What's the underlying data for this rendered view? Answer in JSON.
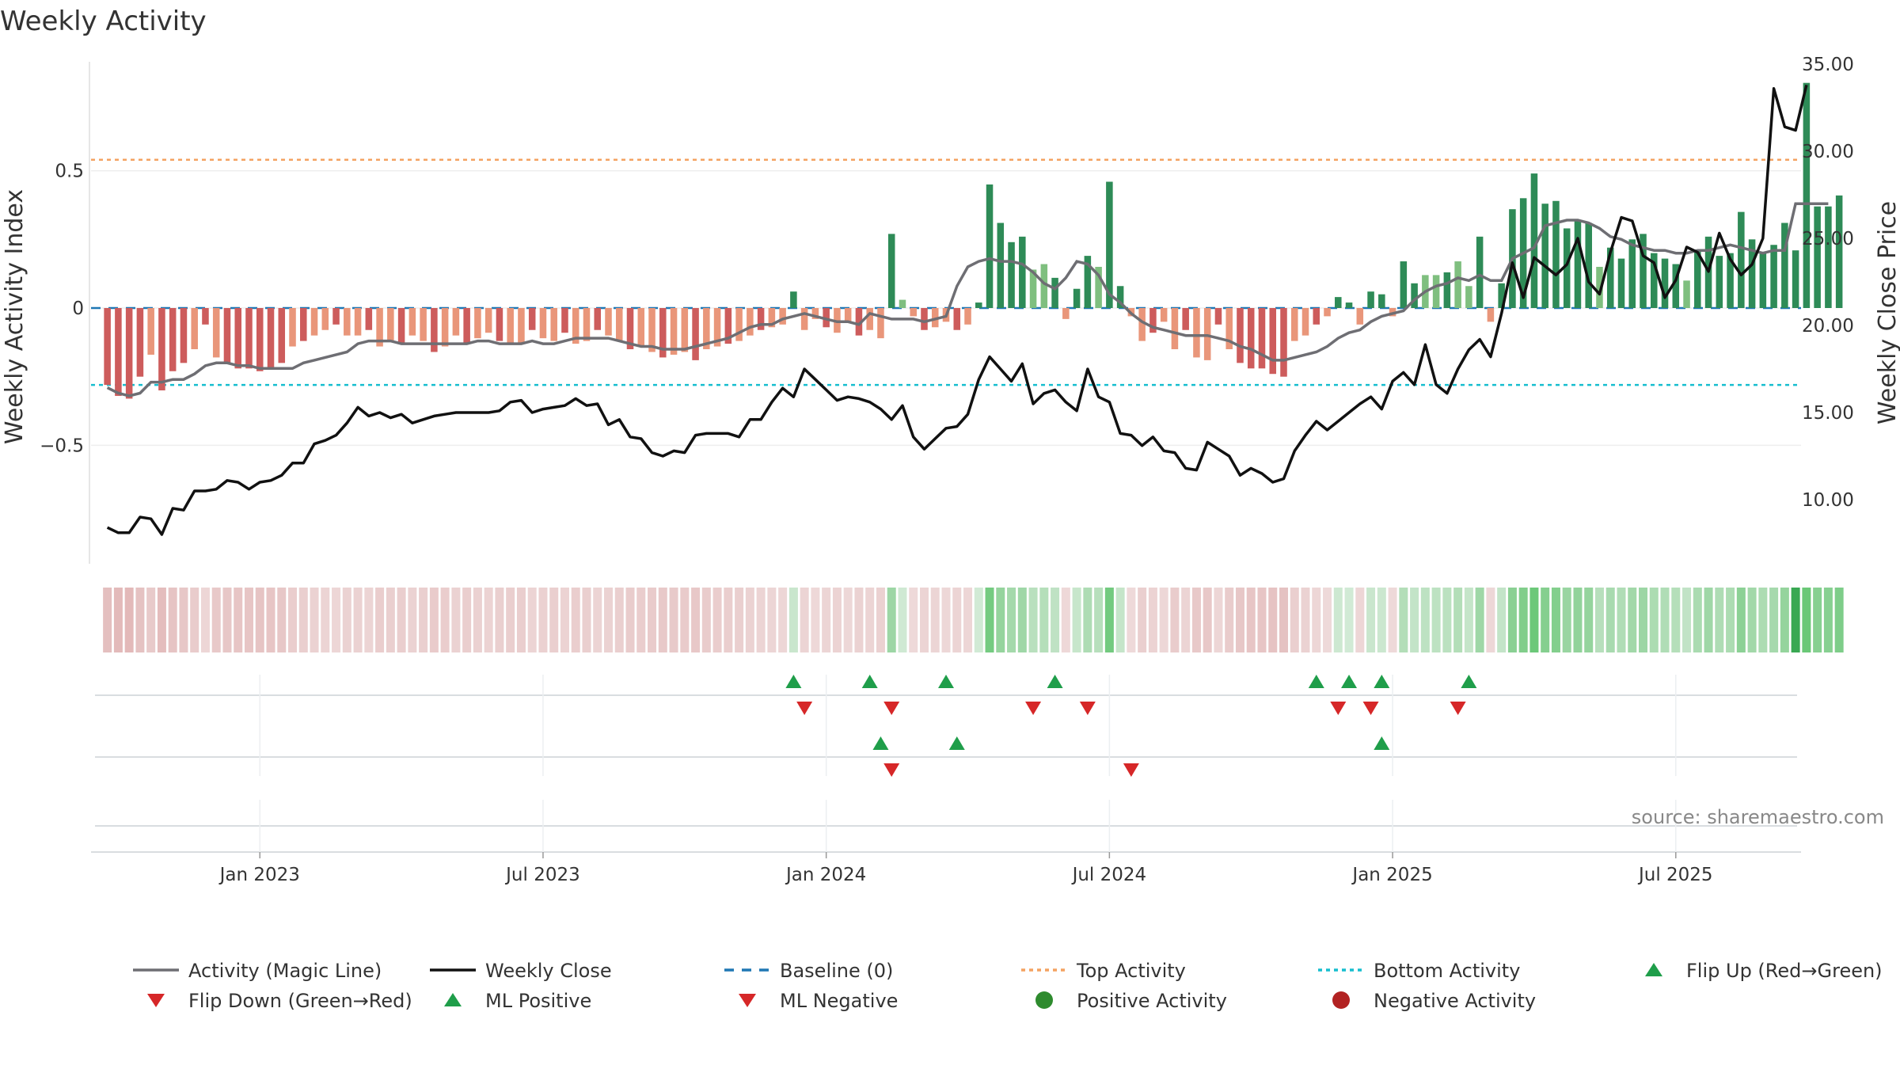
{
  "chart_data": {
    "type": "bar",
    "title": "Weekly Activity",
    "ylabel": "Weekly Activity Index",
    "ylabel_right": "Weekly Close Price",
    "ylim": [
      -0.92,
      0.92
    ],
    "ylim_right": [
      6.5,
      35.5
    ],
    "yticks": [
      {
        "v": 0.5,
        "label": "0.5"
      },
      {
        "v": 0,
        "label": "0"
      },
      {
        "v": -0.5,
        "label": "−0.5"
      }
    ],
    "yticks_right": [
      "35.00",
      "30.00",
      "25.00",
      "20.00",
      "15.00",
      "10.00"
    ],
    "x_ticks": [
      {
        "week": 14,
        "label": "Jan 2023"
      },
      {
        "week": 40,
        "label": "Jul 2023"
      },
      {
        "week": 66,
        "label": "Jan 2024"
      },
      {
        "week": 92,
        "label": "Jul 2024"
      },
      {
        "week": 118,
        "label": "Jan 2025"
      },
      {
        "week": 144,
        "label": "Jul 2025"
      }
    ],
    "x_range": [
      -1.5,
      155.5
    ],
    "top_activity": 0.54,
    "bottom_activity": -0.28,
    "activity": [
      -0.28,
      -0.32,
      -0.33,
      -0.25,
      -0.17,
      -0.3,
      -0.23,
      -0.2,
      -0.15,
      -0.06,
      -0.18,
      -0.2,
      -0.22,
      -0.22,
      -0.23,
      -0.22,
      -0.2,
      -0.14,
      -0.12,
      -0.1,
      -0.08,
      -0.06,
      -0.1,
      -0.1,
      -0.08,
      -0.14,
      -0.12,
      -0.13,
      -0.1,
      -0.12,
      -0.16,
      -0.14,
      -0.1,
      -0.13,
      -0.11,
      -0.09,
      -0.12,
      -0.13,
      -0.13,
      -0.08,
      -0.11,
      -0.12,
      -0.09,
      -0.13,
      -0.12,
      -0.08,
      -0.1,
      -0.12,
      -0.15,
      -0.14,
      -0.16,
      -0.18,
      -0.17,
      -0.16,
      -0.19,
      -0.15,
      -0.14,
      -0.13,
      -0.12,
      -0.1,
      -0.08,
      -0.07,
      -0.06,
      0.06,
      -0.08,
      -0.04,
      -0.07,
      -0.09,
      -0.05,
      -0.1,
      -0.08,
      -0.11,
      0.27,
      0.03,
      -0.03,
      -0.08,
      -0.07,
      -0.05,
      -0.08,
      -0.06,
      0.02,
      0.45,
      0.31,
      0.24,
      0.26,
      0.14,
      0.16,
      0.11,
      -0.04,
      0.07,
      0.19,
      0.15,
      0.46,
      0.08,
      -0.03,
      -0.12,
      -0.09,
      -0.05,
      -0.15,
      -0.08,
      -0.18,
      -0.19,
      -0.06,
      -0.15,
      -0.2,
      -0.22,
      -0.22,
      -0.24,
      -0.25,
      -0.12,
      -0.1,
      -0.06,
      -0.03,
      0.04,
      0.02,
      -0.06,
      0.06,
      0.05,
      -0.03,
      0.17,
      0.09,
      0.12,
      0.12,
      0.13,
      0.17,
      0.08,
      0.26,
      -0.05,
      0.09,
      0.36,
      0.4,
      0.49,
      0.38,
      0.39,
      0.29,
      0.32,
      0.31,
      0.15,
      0.22,
      0.18,
      0.25,
      0.27,
      0.2,
      0.18,
      0.16,
      0.1,
      0.21,
      0.26,
      0.19,
      0.2,
      0.35,
      0.25,
      0.2,
      0.23,
      0.31,
      0.21,
      0.82,
      0.37,
      0.37,
      0.41
    ],
    "magic_line": [
      -0.29,
      -0.31,
      -0.32,
      -0.31,
      -0.27,
      -0.27,
      -0.26,
      -0.26,
      -0.24,
      -0.21,
      -0.2,
      -0.2,
      -0.21,
      -0.21,
      -0.22,
      -0.22,
      -0.22,
      -0.22,
      -0.2,
      -0.19,
      -0.18,
      -0.17,
      -0.16,
      -0.13,
      -0.12,
      -0.12,
      -0.12,
      -0.13,
      -0.13,
      -0.13,
      -0.13,
      -0.13,
      -0.13,
      -0.13,
      -0.12,
      -0.12,
      -0.13,
      -0.13,
      -0.13,
      -0.12,
      -0.13,
      -0.13,
      -0.12,
      -0.11,
      -0.11,
      -0.11,
      -0.11,
      -0.12,
      -0.13,
      -0.14,
      -0.14,
      -0.15,
      -0.15,
      -0.15,
      -0.14,
      -0.13,
      -0.12,
      -0.11,
      -0.09,
      -0.07,
      -0.06,
      -0.06,
      -0.04,
      -0.03,
      -0.02,
      -0.03,
      -0.04,
      -0.05,
      -0.05,
      -0.06,
      -0.02,
      -0.03,
      -0.04,
      -0.04,
      -0.04,
      -0.05,
      -0.04,
      -0.03,
      0.08,
      0.15,
      0.17,
      0.18,
      0.17,
      0.17,
      0.16,
      0.13,
      0.09,
      0.07,
      0.11,
      0.17,
      0.16,
      0.12,
      0.05,
      0.02,
      -0.02,
      -0.05,
      -0.07,
      -0.08,
      -0.09,
      -0.1,
      -0.1,
      -0.1,
      -0.11,
      -0.12,
      -0.14,
      -0.15,
      -0.17,
      -0.19,
      -0.19,
      -0.18,
      -0.17,
      -0.16,
      -0.14,
      -0.11,
      -0.09,
      -0.08,
      -0.05,
      -0.03,
      -0.02,
      -0.01,
      0.03,
      0.06,
      0.08,
      0.09,
      0.11,
      0.1,
      0.12,
      0.1,
      0.1,
      0.18,
      0.2,
      0.22,
      0.3,
      0.31,
      0.32,
      0.32,
      0.31,
      0.29,
      0.26,
      0.25,
      0.23,
      0.22,
      0.21,
      0.21,
      0.2,
      0.2,
      0.21,
      0.21,
      0.22,
      0.23,
      0.22,
      0.21,
      0.2,
      0.21,
      0.21,
      0.38,
      0.38,
      0.38,
      0.38
    ],
    "weekly_close": [
      8.4,
      8.1,
      8.1,
      9.0,
      8.9,
      8.0,
      9.5,
      9.4,
      10.5,
      10.5,
      10.6,
      11.1,
      11.0,
      10.6,
      11.0,
      11.1,
      11.4,
      12.1,
      12.1,
      13.2,
      13.4,
      13.7,
      14.4,
      15.3,
      14.8,
      15.0,
      14.7,
      14.9,
      14.4,
      14.6,
      14.8,
      14.9,
      15.0,
      15.0,
      15.0,
      15.0,
      15.1,
      15.6,
      15.7,
      15.0,
      15.2,
      15.3,
      15.4,
      15.8,
      15.4,
      15.5,
      14.3,
      14.6,
      13.6,
      13.5,
      12.7,
      12.5,
      12.8,
      12.7,
      13.7,
      13.8,
      13.8,
      13.8,
      13.6,
      14.6,
      14.6,
      15.6,
      16.4,
      15.9,
      17.5,
      16.9,
      16.3,
      15.7,
      15.9,
      15.8,
      15.6,
      15.2,
      14.6,
      15.4,
      13.6,
      12.9,
      13.5,
      14.1,
      14.2,
      14.9,
      16.9,
      18.2,
      17.5,
      16.8,
      17.8,
      15.5,
      16.1,
      16.3,
      15.6,
      15.1,
      17.5,
      15.9,
      15.6,
      13.8,
      13.7,
      13.1,
      13.6,
      12.8,
      12.7,
      11.8,
      11.7,
      13.3,
      12.9,
      12.5,
      11.4,
      11.8,
      11.5,
      11.0,
      11.2,
      12.8,
      13.7,
      14.5,
      14.0,
      14.5,
      15.0,
      15.5,
      15.9,
      15.2,
      16.8,
      17.3,
      16.6,
      18.9,
      16.6,
      16.1,
      17.5,
      18.6,
      19.2,
      18.2,
      20.7,
      23.6,
      21.6,
      23.9,
      23.4,
      22.9,
      23.5,
      25.0,
      22.5,
      21.8,
      24.2,
      26.2,
      26.0,
      24.0,
      23.6,
      21.6,
      22.6,
      24.5,
      24.2,
      23.1,
      25.3,
      23.8,
      22.9,
      23.5,
      25.0,
      33.6,
      31.4,
      31.2,
      33.8
    ],
    "flip_up": [
      63,
      70,
      77,
      87,
      111,
      114,
      117,
      125
    ],
    "flip_down": [
      64,
      72,
      85,
      90,
      113,
      116,
      124
    ],
    "ml_positive": [
      71,
      78,
      117
    ],
    "ml_negative": [
      72,
      94
    ],
    "colors": {
      "pos_strong": "#2e8b57",
      "pos_light": "#7fbf7f",
      "neg_strong": "#cd5c5c",
      "neg_light": "#e9967a",
      "magic_line": "#6e6e73",
      "close": "#111111",
      "baseline": "#1f77b4",
      "top": "#f4a261",
      "bottom": "#17becf",
      "up_marker": "#1f9e4a",
      "down_marker": "#d62728"
    },
    "legend": [
      "Activity (Magic Line)",
      "Weekly Close",
      "Baseline (0)",
      "Top Activity",
      "Bottom Activity",
      "Flip Up (Red→Green)",
      "Flip Down (Green→Red)",
      "ML Positive",
      "ML Negative",
      "Positive Activity",
      "Negative Activity"
    ]
  },
  "source": "source: sharemaestro.com"
}
